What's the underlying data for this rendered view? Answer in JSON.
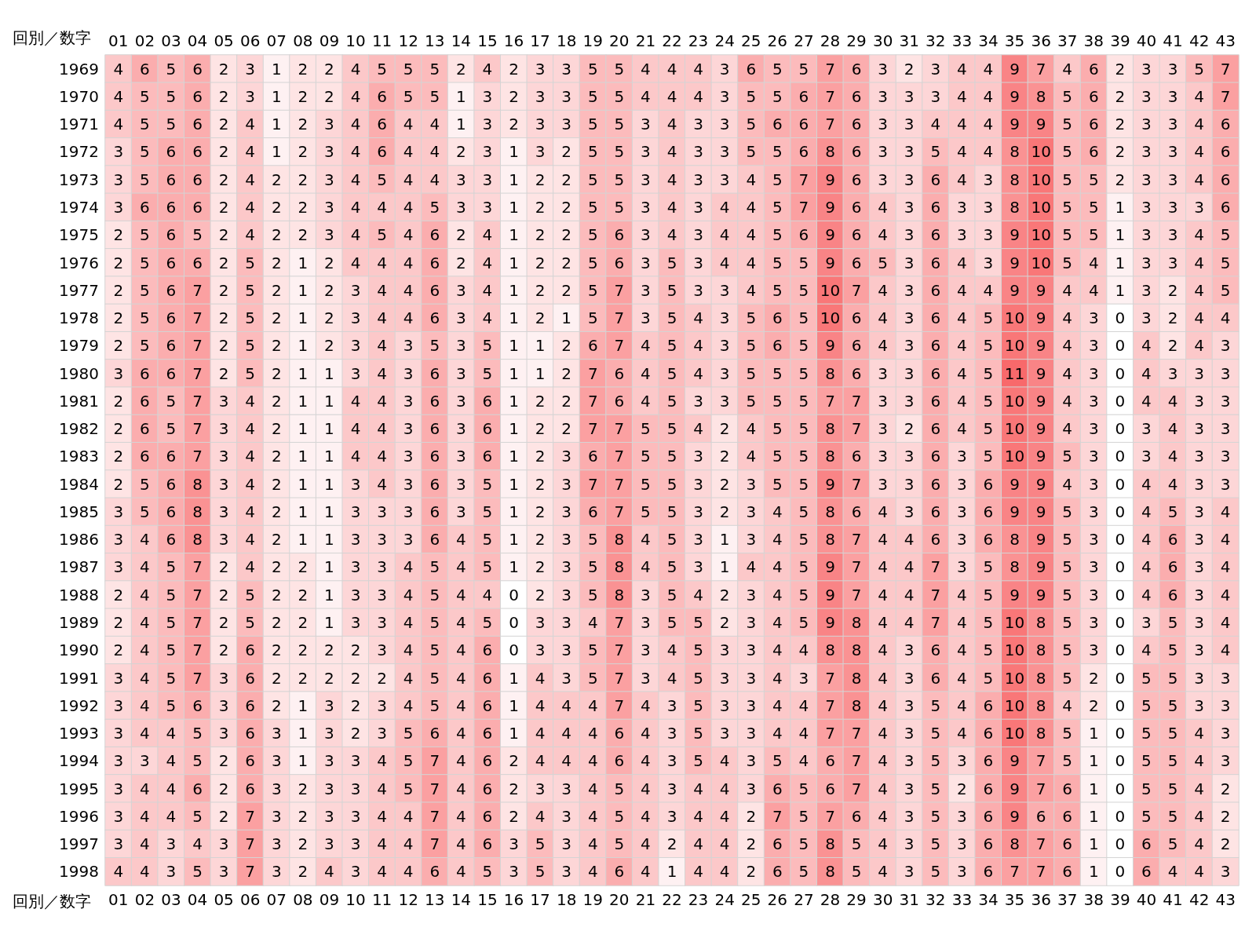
{
  "chart_data": {
    "type": "heatmap",
    "xlabel": "回別／数字",
    "color": "#f8696b",
    "data_labels": true,
    "categories": [
      "01",
      "02",
      "03",
      "04",
      "05",
      "06",
      "07",
      "08",
      "09",
      "10",
      "11",
      "12",
      "13",
      "14",
      "15",
      "16",
      "17",
      "18",
      "19",
      "20",
      "21",
      "22",
      "23",
      "24",
      "25",
      "26",
      "27",
      "28",
      "29",
      "30",
      "31",
      "32",
      "33",
      "34",
      "35",
      "36",
      "37",
      "38",
      "39",
      "40",
      "41",
      "42",
      "43"
    ],
    "y_categories": [
      "1969",
      "1970",
      "1971",
      "1972",
      "1973",
      "1974",
      "1975",
      "1976",
      "1977",
      "1978",
      "1979",
      "1980",
      "1981",
      "1982",
      "1983",
      "1984",
      "1985",
      "1986",
      "1987",
      "1988",
      "1989",
      "1990",
      "1991",
      "1992",
      "1993",
      "1994",
      "1995",
      "1996",
      "1997",
      "1998"
    ],
    "cells": [
      [
        4,
        6,
        5,
        6,
        2,
        3,
        1,
        2,
        2,
        4,
        5,
        5,
        5,
        2,
        4,
        2,
        3,
        3,
        5,
        5,
        4,
        4,
        4,
        3,
        6,
        5,
        5,
        7,
        6,
        3,
        2,
        3,
        4,
        4,
        9,
        7,
        4,
        6,
        2,
        3,
        3,
        5,
        7
      ],
      [
        4,
        5,
        5,
        6,
        2,
        3,
        1,
        2,
        2,
        4,
        6,
        5,
        5,
        1,
        3,
        2,
        3,
        3,
        5,
        5,
        4,
        4,
        4,
        3,
        5,
        5,
        6,
        7,
        6,
        3,
        3,
        3,
        4,
        4,
        9,
        8,
        5,
        6,
        2,
        3,
        3,
        4,
        7
      ],
      [
        4,
        5,
        5,
        6,
        2,
        4,
        1,
        2,
        3,
        4,
        6,
        4,
        4,
        1,
        3,
        2,
        3,
        3,
        5,
        5,
        3,
        4,
        3,
        3,
        5,
        6,
        6,
        7,
        6,
        3,
        3,
        4,
        4,
        4,
        9,
        9,
        5,
        6,
        2,
        3,
        3,
        4,
        6
      ],
      [
        3,
        5,
        6,
        6,
        2,
        4,
        1,
        2,
        3,
        4,
        6,
        4,
        4,
        2,
        3,
        1,
        3,
        2,
        5,
        5,
        3,
        4,
        3,
        3,
        5,
        5,
        6,
        8,
        6,
        3,
        3,
        5,
        4,
        4,
        8,
        10,
        5,
        6,
        2,
        3,
        3,
        4,
        6
      ],
      [
        3,
        5,
        6,
        6,
        2,
        4,
        2,
        2,
        3,
        4,
        5,
        4,
        4,
        3,
        3,
        1,
        2,
        2,
        5,
        5,
        3,
        4,
        3,
        3,
        4,
        5,
        7,
        9,
        6,
        3,
        3,
        6,
        4,
        3,
        8,
        10,
        5,
        5,
        2,
        3,
        3,
        4,
        6
      ],
      [
        3,
        6,
        6,
        6,
        2,
        4,
        2,
        2,
        3,
        4,
        4,
        4,
        5,
        3,
        3,
        1,
        2,
        2,
        5,
        5,
        3,
        4,
        3,
        4,
        4,
        5,
        7,
        9,
        6,
        4,
        3,
        6,
        3,
        3,
        8,
        10,
        5,
        5,
        1,
        3,
        3,
        3,
        6
      ],
      [
        2,
        5,
        6,
        5,
        2,
        4,
        2,
        2,
        3,
        4,
        5,
        4,
        6,
        2,
        4,
        1,
        2,
        2,
        5,
        6,
        3,
        4,
        3,
        4,
        4,
        5,
        6,
        9,
        6,
        4,
        3,
        6,
        3,
        3,
        9,
        10,
        5,
        5,
        1,
        3,
        3,
        4,
        5
      ],
      [
        2,
        5,
        6,
        6,
        2,
        5,
        2,
        1,
        2,
        4,
        4,
        4,
        6,
        2,
        4,
        1,
        2,
        2,
        5,
        6,
        3,
        5,
        3,
        4,
        4,
        5,
        5,
        9,
        6,
        5,
        3,
        6,
        4,
        3,
        9,
        10,
        5,
        4,
        1,
        3,
        3,
        4,
        5
      ],
      [
        2,
        5,
        6,
        7,
        2,
        5,
        2,
        1,
        2,
        3,
        4,
        4,
        6,
        3,
        4,
        1,
        2,
        2,
        5,
        7,
        3,
        5,
        3,
        3,
        4,
        5,
        5,
        10,
        7,
        4,
        3,
        6,
        4,
        4,
        9,
        9,
        4,
        4,
        1,
        3,
        2,
        4,
        5
      ],
      [
        2,
        5,
        6,
        7,
        2,
        5,
        2,
        1,
        2,
        3,
        4,
        4,
        6,
        3,
        4,
        1,
        2,
        1,
        5,
        7,
        3,
        5,
        4,
        3,
        5,
        6,
        5,
        10,
        6,
        4,
        3,
        6,
        4,
        5,
        10,
        9,
        4,
        3,
        0,
        3,
        2,
        4,
        4
      ],
      [
        2,
        5,
        6,
        7,
        2,
        5,
        2,
        1,
        2,
        3,
        4,
        3,
        5,
        3,
        5,
        1,
        1,
        2,
        6,
        7,
        4,
        5,
        4,
        3,
        5,
        6,
        5,
        9,
        6,
        4,
        3,
        6,
        4,
        5,
        10,
        9,
        4,
        3,
        0,
        4,
        2,
        4,
        3
      ],
      [
        3,
        6,
        6,
        7,
        2,
        5,
        2,
        1,
        1,
        3,
        4,
        3,
        6,
        3,
        5,
        1,
        1,
        2,
        7,
        6,
        4,
        5,
        4,
        3,
        5,
        5,
        5,
        8,
        6,
        3,
        3,
        6,
        4,
        5,
        11,
        9,
        4,
        3,
        0,
        4,
        3,
        3,
        3
      ],
      [
        2,
        6,
        5,
        7,
        3,
        4,
        2,
        1,
        1,
        4,
        4,
        3,
        6,
        3,
        6,
        1,
        2,
        2,
        7,
        6,
        4,
        5,
        3,
        3,
        5,
        5,
        5,
        7,
        7,
        3,
        3,
        6,
        4,
        5,
        10,
        9,
        4,
        3,
        0,
        4,
        4,
        3,
        3
      ],
      [
        2,
        6,
        5,
        7,
        3,
        4,
        2,
        1,
        1,
        4,
        4,
        3,
        6,
        3,
        6,
        1,
        2,
        2,
        7,
        7,
        5,
        5,
        4,
        2,
        4,
        5,
        5,
        8,
        7,
        3,
        2,
        6,
        4,
        5,
        10,
        9,
        4,
        3,
        0,
        3,
        4,
        3,
        3
      ],
      [
        2,
        6,
        6,
        7,
        3,
        4,
        2,
        1,
        1,
        4,
        4,
        3,
        6,
        3,
        6,
        1,
        2,
        3,
        6,
        7,
        5,
        5,
        3,
        2,
        4,
        5,
        5,
        8,
        6,
        3,
        3,
        6,
        3,
        5,
        10,
        9,
        5,
        3,
        0,
        3,
        4,
        3,
        3
      ],
      [
        2,
        5,
        6,
        8,
        3,
        4,
        2,
        1,
        1,
        3,
        4,
        3,
        6,
        3,
        5,
        1,
        2,
        3,
        7,
        7,
        5,
        5,
        3,
        2,
        3,
        5,
        5,
        9,
        7,
        3,
        3,
        6,
        3,
        6,
        9,
        9,
        4,
        3,
        0,
        4,
        4,
        3,
        3
      ],
      [
        3,
        5,
        6,
        8,
        3,
        4,
        2,
        1,
        1,
        3,
        3,
        3,
        6,
        3,
        5,
        1,
        2,
        3,
        6,
        7,
        5,
        5,
        3,
        2,
        3,
        4,
        5,
        8,
        6,
        4,
        3,
        6,
        3,
        6,
        9,
        9,
        5,
        3,
        0,
        4,
        5,
        3,
        4
      ],
      [
        3,
        4,
        6,
        8,
        3,
        4,
        2,
        1,
        1,
        3,
        3,
        3,
        6,
        4,
        5,
        1,
        2,
        3,
        5,
        8,
        4,
        5,
        3,
        1,
        3,
        4,
        5,
        8,
        7,
        4,
        4,
        6,
        3,
        6,
        8,
        9,
        5,
        3,
        0,
        4,
        6,
        3,
        4
      ],
      [
        3,
        4,
        5,
        7,
        2,
        4,
        2,
        2,
        1,
        3,
        3,
        4,
        5,
        4,
        5,
        1,
        2,
        3,
        5,
        8,
        4,
        5,
        3,
        1,
        4,
        4,
        5,
        9,
        7,
        4,
        4,
        7,
        3,
        5,
        8,
        9,
        5,
        3,
        0,
        4,
        6,
        3,
        4
      ],
      [
        2,
        4,
        5,
        7,
        2,
        5,
        2,
        2,
        1,
        3,
        3,
        4,
        5,
        4,
        4,
        0,
        2,
        3,
        5,
        8,
        3,
        5,
        4,
        2,
        3,
        4,
        5,
        9,
        7,
        4,
        4,
        7,
        4,
        5,
        9,
        9,
        5,
        3,
        0,
        4,
        6,
        3,
        4
      ],
      [
        2,
        4,
        5,
        7,
        2,
        5,
        2,
        2,
        1,
        3,
        3,
        4,
        5,
        4,
        5,
        0,
        3,
        3,
        4,
        7,
        3,
        5,
        5,
        2,
        3,
        4,
        5,
        9,
        8,
        4,
        4,
        7,
        4,
        5,
        10,
        8,
        5,
        3,
        0,
        3,
        5,
        3,
        4
      ],
      [
        2,
        4,
        5,
        7,
        2,
        6,
        2,
        2,
        2,
        2,
        3,
        4,
        5,
        4,
        6,
        0,
        3,
        3,
        5,
        7,
        3,
        4,
        5,
        3,
        3,
        4,
        4,
        8,
        8,
        4,
        3,
        6,
        4,
        5,
        10,
        8,
        5,
        3,
        0,
        4,
        5,
        3,
        4
      ],
      [
        3,
        4,
        5,
        7,
        3,
        6,
        2,
        2,
        2,
        2,
        2,
        4,
        5,
        4,
        6,
        1,
        4,
        3,
        5,
        7,
        3,
        4,
        5,
        3,
        3,
        4,
        3,
        7,
        8,
        4,
        3,
        6,
        4,
        5,
        10,
        8,
        5,
        2,
        0,
        5,
        5,
        3,
        3
      ],
      [
        3,
        4,
        5,
        6,
        3,
        6,
        2,
        1,
        3,
        2,
        3,
        4,
        5,
        4,
        6,
        1,
        4,
        4,
        4,
        7,
        4,
        3,
        5,
        3,
        3,
        4,
        4,
        7,
        8,
        4,
        3,
        5,
        4,
        6,
        10,
        8,
        4,
        2,
        0,
        5,
        5,
        3,
        3
      ],
      [
        3,
        4,
        4,
        5,
        3,
        6,
        3,
        1,
        3,
        2,
        3,
        5,
        6,
        4,
        6,
        1,
        4,
        4,
        4,
        6,
        4,
        3,
        5,
        3,
        3,
        4,
        4,
        7,
        7,
        4,
        3,
        5,
        4,
        6,
        10,
        8,
        5,
        1,
        0,
        5,
        5,
        4,
        3
      ],
      [
        3,
        3,
        4,
        5,
        2,
        6,
        3,
        1,
        3,
        3,
        4,
        5,
        7,
        4,
        6,
        2,
        4,
        4,
        4,
        6,
        4,
        3,
        5,
        4,
        3,
        5,
        4,
        6,
        7,
        4,
        3,
        5,
        3,
        6,
        9,
        7,
        5,
        1,
        0,
        5,
        5,
        4,
        3
      ],
      [
        3,
        4,
        4,
        6,
        2,
        6,
        3,
        2,
        3,
        3,
        4,
        5,
        7,
        4,
        6,
        2,
        3,
        3,
        4,
        5,
        4,
        3,
        4,
        4,
        3,
        6,
        5,
        6,
        7,
        4,
        3,
        5,
        2,
        6,
        9,
        7,
        6,
        1,
        0,
        5,
        5,
        4,
        2
      ],
      [
        3,
        4,
        4,
        5,
        2,
        7,
        3,
        2,
        3,
        3,
        4,
        4,
        7,
        4,
        6,
        2,
        4,
        3,
        4,
        5,
        4,
        3,
        4,
        4,
        2,
        7,
        5,
        7,
        6,
        4,
        3,
        5,
        3,
        6,
        9,
        6,
        6,
        1,
        0,
        5,
        5,
        4,
        2
      ],
      [
        3,
        4,
        3,
        4,
        3,
        7,
        3,
        2,
        3,
        3,
        4,
        4,
        7,
        4,
        6,
        3,
        5,
        3,
        4,
        5,
        4,
        2,
        4,
        4,
        2,
        6,
        5,
        8,
        5,
        4,
        3,
        5,
        3,
        6,
        8,
        7,
        6,
        1,
        0,
        6,
        5,
        4,
        2
      ],
      [
        4,
        4,
        3,
        5,
        3,
        7,
        3,
        2,
        4,
        3,
        4,
        4,
        6,
        4,
        5,
        3,
        5,
        3,
        4,
        6,
        4,
        1,
        4,
        4,
        2,
        6,
        5,
        8,
        5,
        4,
        3,
        5,
        3,
        6,
        7,
        7,
        6,
        1,
        0,
        6,
        4,
        4,
        3
      ]
    ]
  }
}
